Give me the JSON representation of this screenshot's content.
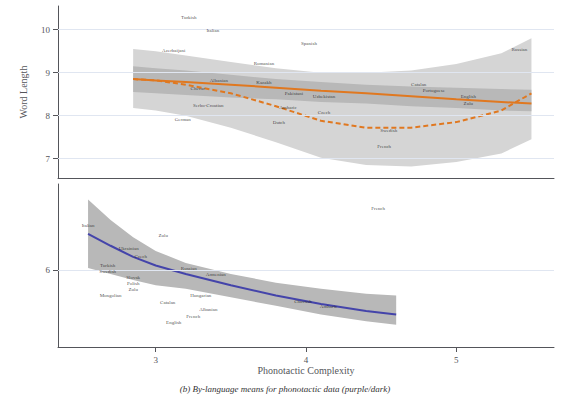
{
  "chart_data": [
    {
      "type": "line",
      "ylabel": "Word Length",
      "xlim": [
        2.35,
        5.65
      ],
      "xticks": [
        3,
        4,
        5
      ],
      "ylim": [
        6.55,
        10.55
      ],
      "yticks": [
        7,
        8,
        9,
        10
      ],
      "tick_labels": "y",
      "grid": true,
      "series": [
        {
          "line_style": "dashed",
          "color": "#E07820",
          "band_color": "#D5D5D5",
          "x": [
            2.85,
            3.0,
            3.2,
            3.5,
            3.8,
            4.1,
            4.4,
            4.7,
            5.0,
            5.3,
            5.5
          ],
          "values": [
            8.85,
            8.82,
            8.72,
            8.52,
            8.22,
            7.88,
            7.72,
            7.72,
            7.85,
            8.12,
            8.52
          ],
          "upper": [
            9.55,
            9.5,
            9.4,
            9.25,
            9.1,
            9.0,
            9.0,
            9.05,
            9.2,
            9.45,
            9.8
          ],
          "lower": [
            8.18,
            8.12,
            8.0,
            7.72,
            7.38,
            7.02,
            6.85,
            6.82,
            6.92,
            7.12,
            7.45
          ]
        },
        {
          "line_style": "solid",
          "color": "#E07820",
          "band_color": "#B8B8B8",
          "x": [
            2.85,
            3.0,
            3.2,
            3.5,
            3.8,
            4.1,
            4.4,
            4.7,
            5.0,
            5.3,
            5.5
          ],
          "values": [
            8.85,
            8.82,
            8.78,
            8.72,
            8.65,
            8.58,
            8.52,
            8.45,
            8.38,
            8.32,
            8.28
          ],
          "upper": [
            9.15,
            9.1,
            9.05,
            8.95,
            8.85,
            8.78,
            8.72,
            8.68,
            8.65,
            8.62,
            8.6
          ],
          "lower": [
            8.55,
            8.52,
            8.48,
            8.42,
            8.38,
            8.32,
            8.28,
            8.22,
            8.18,
            8.12,
            8.1
          ]
        }
      ],
      "annotations": [
        {
          "text": "Turkish",
          "x": 3.22,
          "y": 10.28
        },
        {
          "text": "Italian",
          "x": 3.38,
          "y": 9.98
        },
        {
          "text": "Spanish",
          "x": 4.02,
          "y": 9.68
        },
        {
          "text": "Azerbaijani",
          "x": 3.12,
          "y": 9.52
        },
        {
          "text": "Romanian",
          "x": 3.72,
          "y": 9.22
        },
        {
          "text": "Albanian",
          "x": 3.42,
          "y": 8.82
        },
        {
          "text": "Kazakh",
          "x": 3.72,
          "y": 8.76
        },
        {
          "text": "Chevar",
          "x": 3.28,
          "y": 8.62
        },
        {
          "text": "Pakistani",
          "x": 3.92,
          "y": 8.52
        },
        {
          "text": "Uzbekistan",
          "x": 4.12,
          "y": 8.44
        },
        {
          "text": "Serbo-Croatian",
          "x": 3.35,
          "y": 8.24
        },
        {
          "text": "Amharic",
          "x": 3.88,
          "y": 8.2
        },
        {
          "text": "Czech",
          "x": 4.12,
          "y": 8.08
        },
        {
          "text": "German",
          "x": 3.18,
          "y": 7.9
        },
        {
          "text": "Dutch",
          "x": 3.82,
          "y": 7.85
        },
        {
          "text": "Swedish",
          "x": 4.55,
          "y": 7.65
        },
        {
          "text": "French",
          "x": 4.52,
          "y": 7.28
        },
        {
          "text": "Catalan",
          "x": 4.75,
          "y": 8.72
        },
        {
          "text": "Portuguese",
          "x": 4.85,
          "y": 8.58
        },
        {
          "text": "English",
          "x": 5.08,
          "y": 8.44
        },
        {
          "text": "Zulu",
          "x": 5.08,
          "y": 8.28
        },
        {
          "text": "Russian",
          "x": 5.42,
          "y": 9.55
        }
      ]
    },
    {
      "type": "line",
      "xlabel": "Phonotactic Complexity",
      "caption": "(b) By-language means for phonotactic data (purple/dark)",
      "xlim": [
        2.35,
        5.65
      ],
      "xticks": [
        3,
        4,
        5
      ],
      "ylim": [
        5.1,
        7.0
      ],
      "yticks": [
        6
      ],
      "grid": true,
      "series": [
        {
          "line_style": "solid",
          "color": "#4444AA",
          "band_color": "#B8B8B8",
          "x": [
            2.55,
            2.7,
            2.85,
            3.0,
            3.2,
            3.5,
            3.8,
            4.1,
            4.4,
            4.6
          ],
          "values": [
            6.42,
            6.28,
            6.15,
            6.05,
            5.95,
            5.82,
            5.7,
            5.6,
            5.52,
            5.48
          ],
          "upper": [
            6.82,
            6.58,
            6.38,
            6.22,
            6.08,
            5.95,
            5.85,
            5.78,
            5.72,
            5.7
          ],
          "lower": [
            6.02,
            5.95,
            5.88,
            5.82,
            5.78,
            5.68,
            5.58,
            5.48,
            5.4,
            5.36
          ]
        }
      ],
      "annotations": [
        {
          "text": "Italian",
          "x": 2.55,
          "y": 6.52
        },
        {
          "text": "Zulu",
          "x": 3.05,
          "y": 6.4
        },
        {
          "text": "Ukrainian",
          "x": 2.82,
          "y": 6.25
        },
        {
          "text": "Czech",
          "x": 2.9,
          "y": 6.15
        },
        {
          "text": "Turkish",
          "x": 2.68,
          "y": 6.05
        },
        {
          "text": "Swedish",
          "x": 2.68,
          "y": 5.98
        },
        {
          "text": "Slovak",
          "x": 2.85,
          "y": 5.91
        },
        {
          "text": "Polish",
          "x": 2.85,
          "y": 5.84
        },
        {
          "text": "Zulu",
          "x": 2.85,
          "y": 5.77
        },
        {
          "text": "Mongolian",
          "x": 2.7,
          "y": 5.7
        },
        {
          "text": "Hungarian",
          "x": 3.3,
          "y": 5.7
        },
        {
          "text": "Catalan",
          "x": 3.08,
          "y": 5.62
        },
        {
          "text": "Russian",
          "x": 3.22,
          "y": 6.02
        },
        {
          "text": "Armenian",
          "x": 3.4,
          "y": 5.95
        },
        {
          "text": "Chuvash",
          "x": 3.98,
          "y": 5.63
        },
        {
          "text": "Albanian",
          "x": 3.35,
          "y": 5.54
        },
        {
          "text": "French",
          "x": 3.25,
          "y": 5.46
        },
        {
          "text": "English",
          "x": 3.12,
          "y": 5.38
        },
        {
          "text": "Amharic",
          "x": 4.15,
          "y": 5.57
        },
        {
          "text": "French",
          "x": 4.48,
          "y": 6.72
        }
      ]
    }
  ]
}
